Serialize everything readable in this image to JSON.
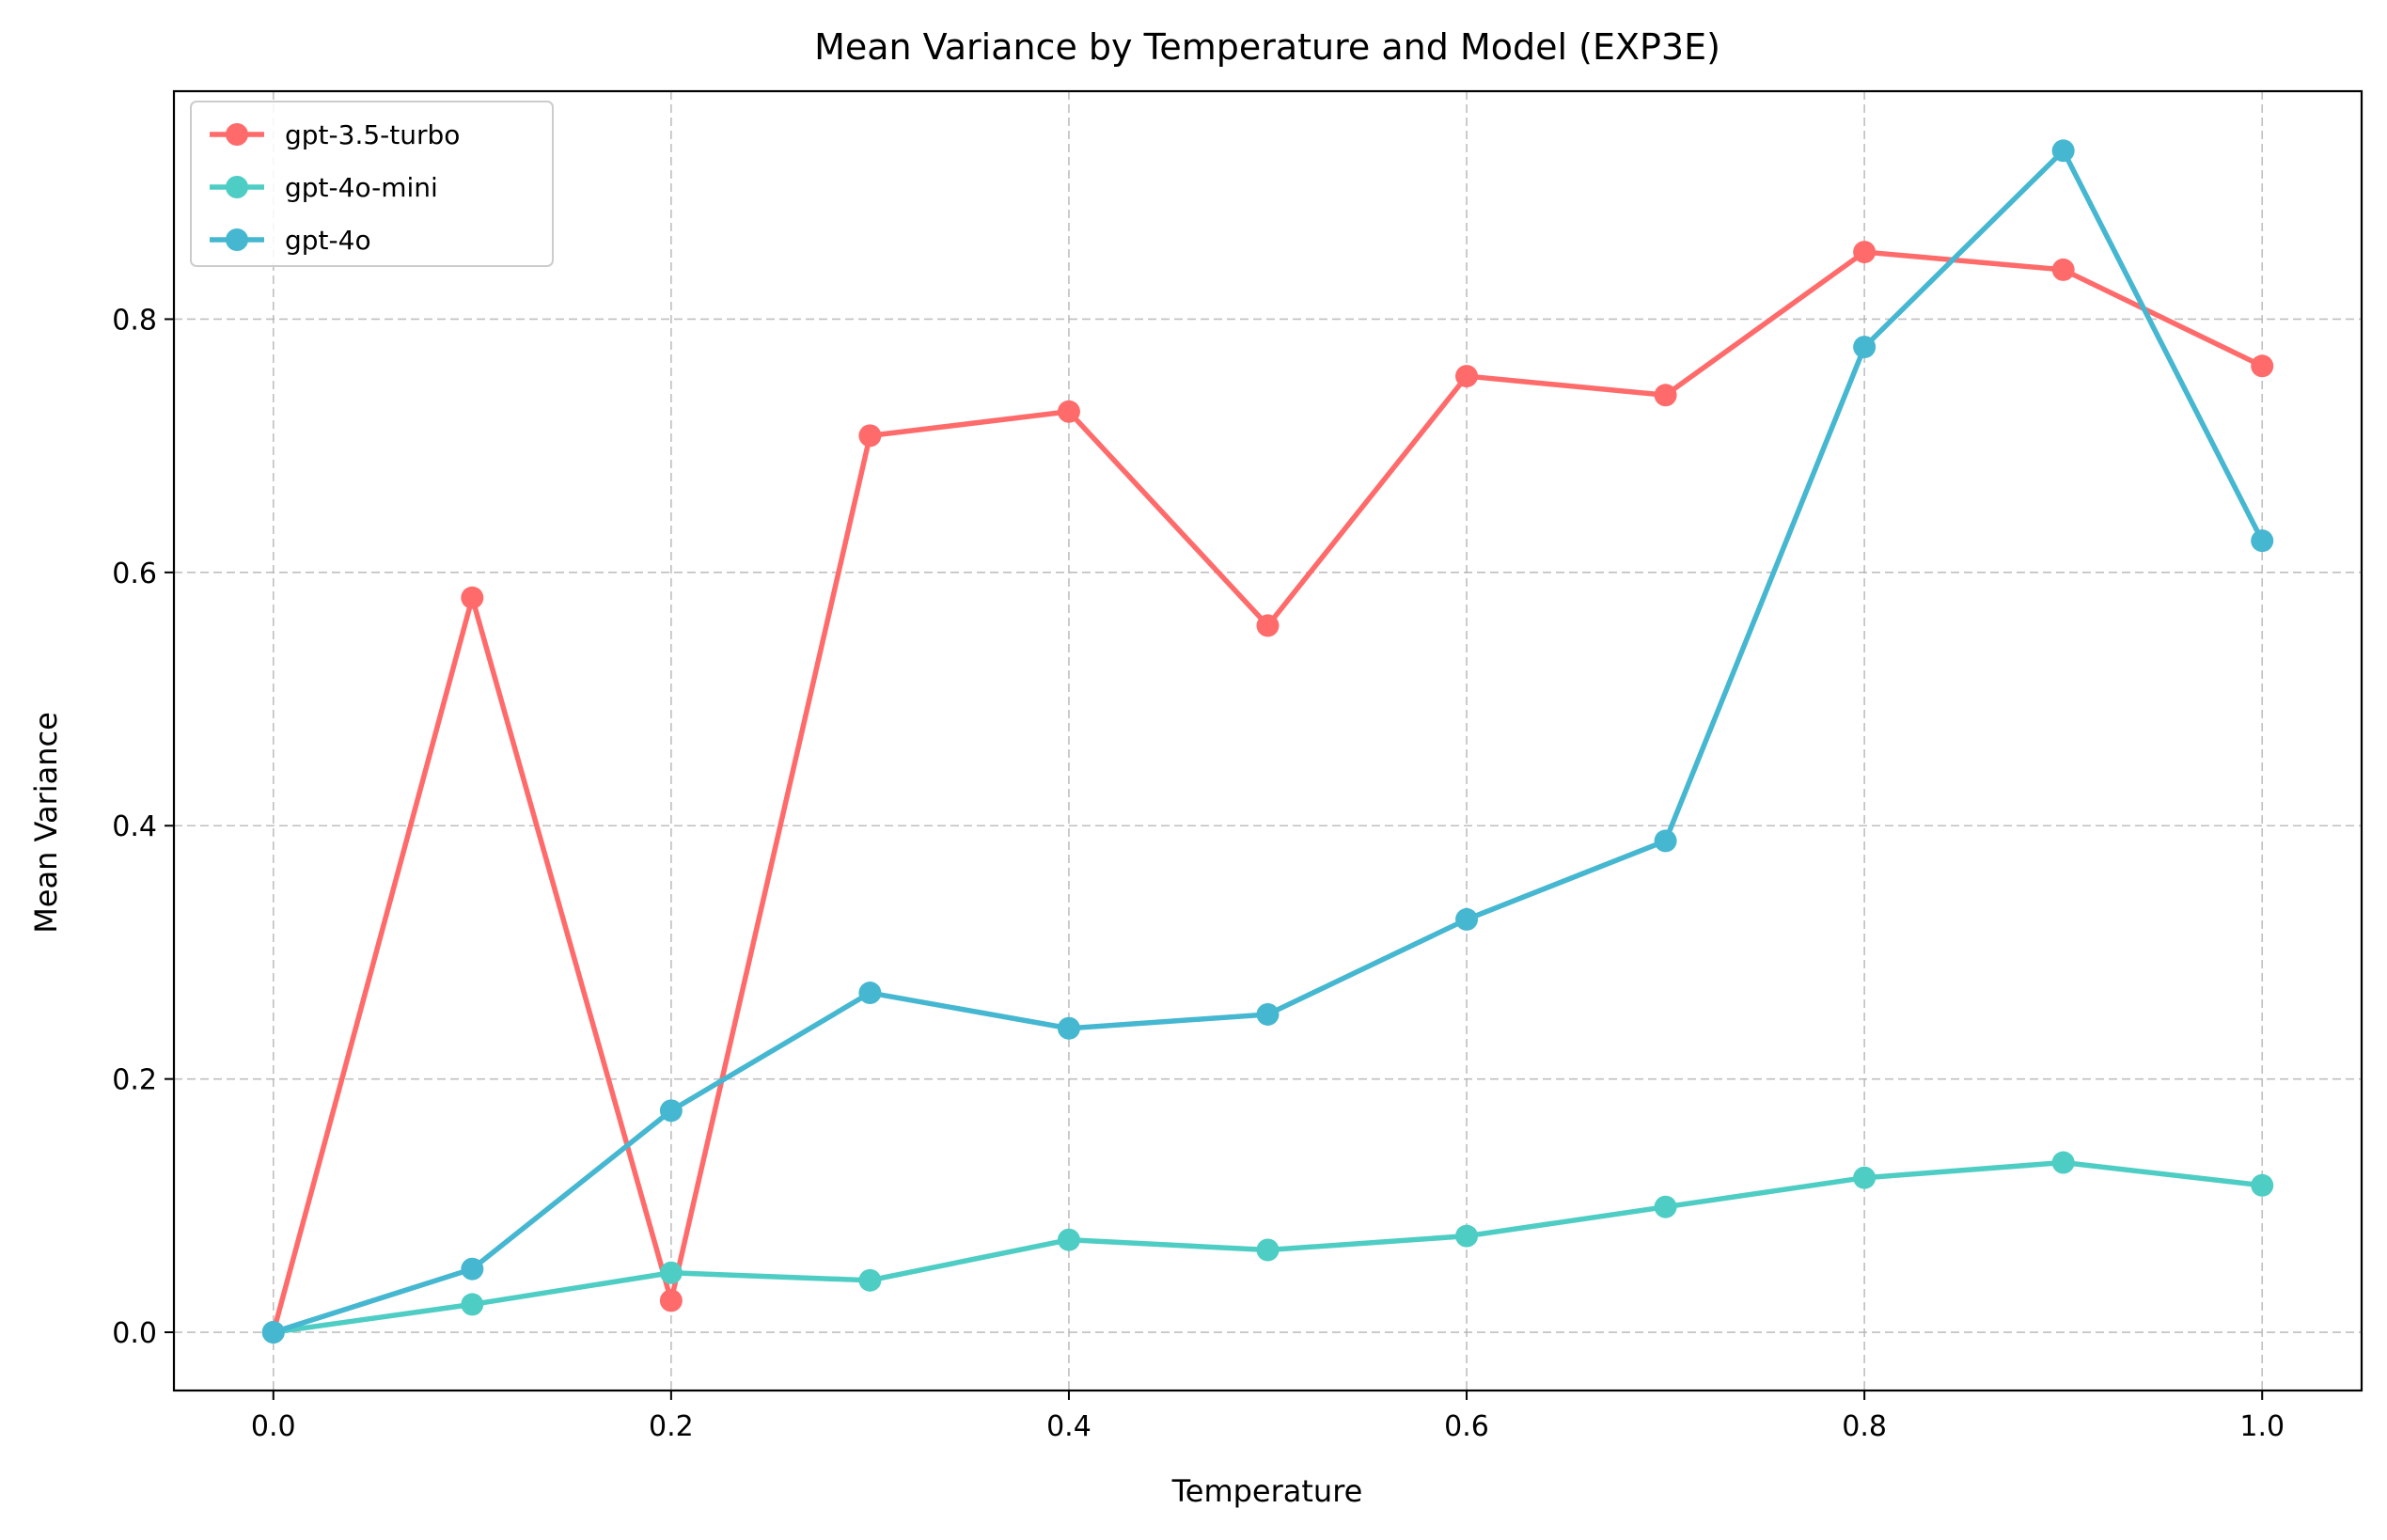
{
  "chart_data": {
    "type": "line",
    "title": "Mean Variance by Temperature and Model (EXP3E)",
    "xlabel": "Temperature",
    "ylabel": "Mean Variance",
    "x": [
      0.0,
      0.1,
      0.2,
      0.3,
      0.4,
      0.5,
      0.6,
      0.7,
      0.8,
      0.9,
      1.0
    ],
    "xlim": [
      -0.05,
      1.05
    ],
    "ylim": [
      -0.046,
      0.98
    ],
    "xticks": [
      0.0,
      0.2,
      0.4,
      0.6,
      0.8,
      1.0
    ],
    "xtick_labels": [
      "0.0",
      "0.2",
      "0.4",
      "0.6",
      "0.8",
      "1.0"
    ],
    "yticks": [
      0.0,
      0.2,
      0.4,
      0.6,
      0.8
    ],
    "ytick_labels": [
      "0.0",
      "0.2",
      "0.4",
      "0.6",
      "0.8"
    ],
    "grid": true,
    "legend_position": "top-left",
    "series": [
      {
        "name": "gpt-3.5-turbo",
        "color": "#ff6b6b",
        "values": [
          0.0,
          0.58,
          0.025,
          0.708,
          0.727,
          0.558,
          0.755,
          0.74,
          0.853,
          0.839,
          0.763
        ]
      },
      {
        "name": "gpt-4o-mini",
        "color": "#4ecdc4",
        "values": [
          0.0,
          0.022,
          0.047,
          0.041,
          0.073,
          0.065,
          0.076,
          0.099,
          0.122,
          0.134,
          0.116
        ]
      },
      {
        "name": "gpt-4o",
        "color": "#45b7d1",
        "values": [
          0.0,
          0.05,
          0.175,
          0.268,
          0.24,
          0.251,
          0.326,
          0.388,
          0.778,
          0.933,
          0.625
        ]
      }
    ]
  }
}
